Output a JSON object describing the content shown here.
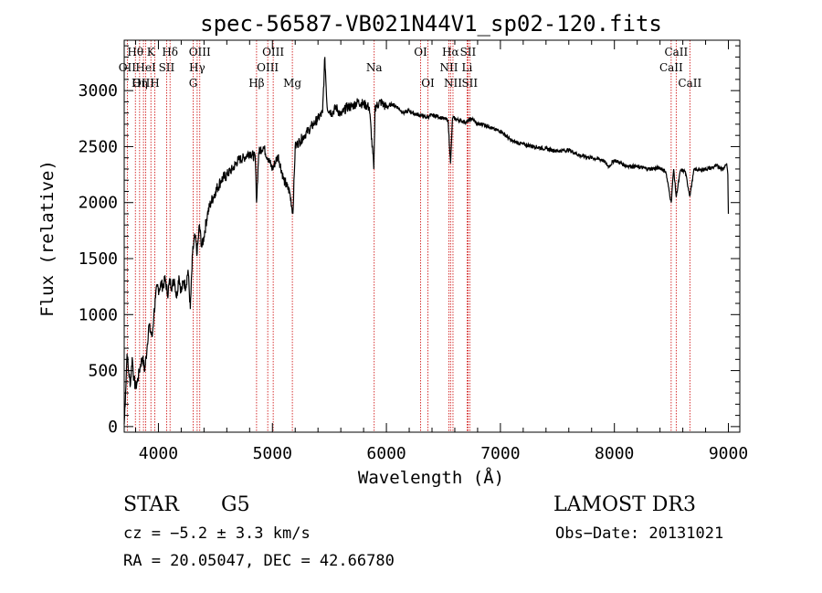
{
  "chart_data": {
    "type": "line",
    "title": "spec-56587-VB021N44V1_sp02-120.fits",
    "xlabel": "Wavelength (Å)",
    "ylabel": "Flux (relative)",
    "xlim": [
      3700,
      9100
    ],
    "ylim": [
      -50,
      3450
    ],
    "xticks": [
      4000,
      5000,
      6000,
      7000,
      8000,
      9000
    ],
    "yticks": [
      0,
      500,
      1000,
      1500,
      2000,
      2500,
      3000
    ],
    "series": [
      {
        "name": "flux",
        "x": [
          3700,
          3712,
          3725,
          3740,
          3755,
          3770,
          3785,
          3800,
          3815,
          3830,
          3845,
          3860,
          3880,
          3900,
          3915,
          3930,
          3945,
          3960,
          3975,
          3990,
          4005,
          4020,
          4040,
          4060,
          4080,
          4100,
          4120,
          4140,
          4160,
          4180,
          4200,
          4220,
          4240,
          4260,
          4280,
          4300,
          4320,
          4340,
          4360,
          4380,
          4400,
          4430,
          4460,
          4500,
          4550,
          4600,
          4650,
          4700,
          4750,
          4800,
          4850,
          4861,
          4880,
          4920,
          4960,
          5000,
          5050,
          5100,
          5150,
          5180,
          5200,
          5240,
          5280,
          5320,
          5360,
          5400,
          5440,
          5460,
          5480,
          5520,
          5560,
          5600,
          5650,
          5700,
          5750,
          5800,
          5850,
          5890,
          5900,
          5950,
          6000,
          6050,
          6100,
          6150,
          6200,
          6250,
          6300,
          6350,
          6400,
          6450,
          6500,
          6540,
          6563,
          6580,
          6620,
          6650,
          6700,
          6750,
          6800,
          6850,
          6900,
          6950,
          7000,
          7100,
          7200,
          7300,
          7400,
          7500,
          7600,
          7700,
          7800,
          7900,
          7950,
          8000,
          8100,
          8200,
          8300,
          8400,
          8450,
          8498,
          8520,
          8542,
          8580,
          8620,
          8662,
          8700,
          8750,
          8800,
          8850,
          8900,
          8950,
          8985,
          8995,
          9000
        ],
        "y": [
          20,
          300,
          650,
          480,
          380,
          620,
          420,
          350,
          400,
          480,
          560,
          620,
          500,
          700,
          900,
          850,
          800,
          1000,
          1150,
          1250,
          1220,
          1280,
          1250,
          1320,
          1180,
          1300,
          1250,
          1320,
          1150,
          1350,
          1200,
          1300,
          1250,
          1400,
          1050,
          1550,
          1700,
          1550,
          1800,
          1600,
          1700,
          1900,
          2000,
          2100,
          2200,
          2250,
          2300,
          2380,
          2400,
          2450,
          2400,
          2000,
          2450,
          2500,
          2400,
          2300,
          2420,
          2200,
          2100,
          1900,
          2500,
          2550,
          2600,
          2650,
          2700,
          2750,
          2800,
          3300,
          2850,
          2800,
          2850,
          2780,
          2850,
          2860,
          2900,
          2880,
          2850,
          2300,
          2850,
          2900,
          2850,
          2880,
          2850,
          2800,
          2820,
          2790,
          2780,
          2760,
          2780,
          2770,
          2750,
          2740,
          2350,
          2760,
          2740,
          2730,
          2720,
          2750,
          2700,
          2700,
          2680,
          2650,
          2640,
          2550,
          2520,
          2500,
          2480,
          2460,
          2470,
          2420,
          2400,
          2380,
          2320,
          2380,
          2330,
          2320,
          2300,
          2310,
          2280,
          2000,
          2300,
          2050,
          2290,
          2280,
          2060,
          2300,
          2290,
          2300,
          2310,
          2330,
          2300,
          2350,
          2250,
          1900
        ]
      }
    ],
    "line_markers": [
      {
        "label": "Hθ",
        "wavelength": 3798,
        "row": 1
      },
      {
        "label": "OII",
        "wavelength": 3727,
        "row": 2
      },
      {
        "label": "OIII",
        "wavelength": 3869,
        "row": 3
      },
      {
        "label": "K",
        "wavelength": 3934,
        "row": 1
      },
      {
        "label": "HeI",
        "wavelength": 3889,
        "row": 2
      },
      {
        "label": "Hη",
        "wavelength": 3835,
        "row": 3
      },
      {
        "label": "SII",
        "wavelength": 4072,
        "row": 2
      },
      {
        "label": "H",
        "wavelength": 3968,
        "row": 3
      },
      {
        "label": "Hδ",
        "wavelength": 4102,
        "row": 1
      },
      {
        "label": "OIII",
        "wavelength": 4363,
        "row": 1
      },
      {
        "label": "Hγ",
        "wavelength": 4340,
        "row": 2
      },
      {
        "label": "G",
        "wavelength": 4305,
        "row": 3
      },
      {
        "label": "OIII",
        "wavelength": 5007,
        "row": 1
      },
      {
        "label": "OIII",
        "wavelength": 4959,
        "row": 2
      },
      {
        "label": "Hβ",
        "wavelength": 4861,
        "row": 3
      },
      {
        "label": "Mg",
        "wavelength": 5175,
        "row": 3
      },
      {
        "label": "Na",
        "wavelength": 5893,
        "row": 2
      },
      {
        "label": "OI",
        "wavelength": 6300,
        "row": 1
      },
      {
        "label": "OI",
        "wavelength": 6364,
        "row": 3
      },
      {
        "label": "Hα",
        "wavelength": 6563,
        "row": 1
      },
      {
        "label": "SII",
        "wavelength": 6716,
        "row": 1
      },
      {
        "label": "NII",
        "wavelength": 6548,
        "row": 2
      },
      {
        "label": "Li",
        "wavelength": 6708,
        "row": 2
      },
      {
        "label": "NII",
        "wavelength": 6584,
        "row": 3
      },
      {
        "label": "SII",
        "wavelength": 6731,
        "row": 3
      },
      {
        "label": "CaII",
        "wavelength": 8542,
        "row": 1
      },
      {
        "label": "CaII",
        "wavelength": 8498,
        "row": 2
      },
      {
        "label": "CaII",
        "wavelength": 8662,
        "row": 3
      }
    ],
    "marker_color": "#cc0000"
  },
  "info": {
    "class": "STAR",
    "subclass": "G5",
    "survey": "LAMOST DR3",
    "cz": "cz = −5.2 ± 3.3 km/s",
    "obs_date": "Obs−Date: 20131021",
    "coords": "RA =  20.05047, DEC =  42.66780"
  }
}
